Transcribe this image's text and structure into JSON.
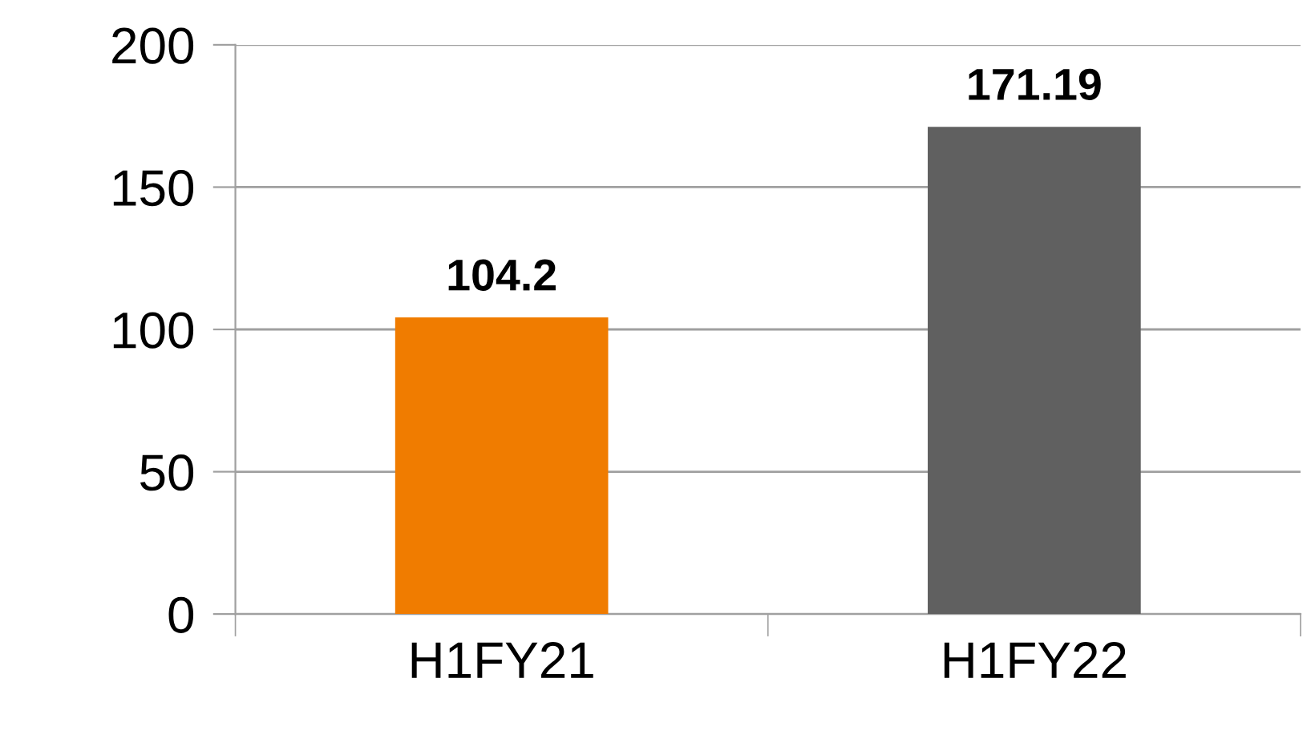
{
  "chart_data": {
    "type": "bar",
    "categories": [
      "H1FY21",
      "H1FY22"
    ],
    "values": [
      104.2,
      171.19
    ],
    "colors": [
      "#f07c00",
      "#606060"
    ],
    "ylim": [
      0,
      200
    ],
    "yticks": [
      0,
      50,
      100,
      150,
      200
    ],
    "grid": "y",
    "data_labels": true,
    "legend": false
  }
}
